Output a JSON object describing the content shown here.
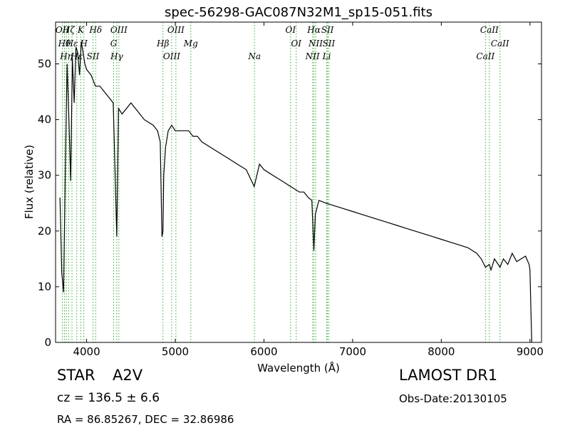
{
  "chart_data": {
    "type": "line",
    "title": "spec-56298-GAC087N32M1_sp15-051.fits",
    "xlabel": "Wavelength (Å)",
    "ylabel": "Flux (relative)",
    "xlim": [
      3650,
      9130
    ],
    "ylim": [
      0,
      57.5
    ],
    "xticks": [
      4000,
      5000,
      6000,
      7000,
      8000,
      9000
    ],
    "yticks": [
      0,
      10,
      20,
      30,
      40,
      50
    ],
    "grid": false,
    "series": [
      {
        "x": [
          3700,
          3720,
          3740,
          3760,
          3780,
          3800,
          3820,
          3840,
          3860,
          3880,
          3900,
          3920,
          3940,
          3960,
          3980,
          4000,
          4050,
          4100,
          4150,
          4200,
          4250,
          4300,
          4340,
          4360,
          4400,
          4450,
          4500,
          4550,
          4600,
          4650,
          4700,
          4750,
          4800,
          4830,
          4850,
          4861,
          4870,
          4890,
          4920,
          4960,
          5000,
          5050,
          5100,
          5150,
          5200,
          5250,
          5300,
          5400,
          5500,
          5600,
          5700,
          5800,
          5890,
          5950,
          6000,
          6100,
          6200,
          6300,
          6400,
          6450,
          6500,
          6540,
          6563,
          6580,
          6620,
          6700,
          6800,
          6900,
          7000,
          7100,
          7200,
          7300,
          7400,
          7500,
          7600,
          7700,
          7800,
          7900,
          8000,
          8100,
          8200,
          8300,
          8400,
          8450,
          8498,
          8542,
          8560,
          8600,
          8662,
          8700,
          8750,
          8800,
          8850,
          8900,
          8950,
          8990,
          9000,
          9010,
          9020
        ],
        "y": [
          26,
          12.5,
          9,
          31,
          50,
          40,
          29,
          51,
          43,
          53,
          52,
          48,
          54,
          52,
          50,
          49,
          48,
          46,
          46,
          45,
          44,
          43,
          19,
          42,
          41,
          42,
          43,
          42,
          41,
          40,
          39.5,
          39,
          38,
          36,
          19,
          20,
          30,
          35,
          38,
          39,
          38,
          38,
          38,
          38,
          37,
          37,
          36,
          35,
          34,
          33,
          32,
          31,
          28,
          32,
          31,
          30,
          29,
          28,
          27,
          27,
          26,
          25.5,
          16.5,
          23,
          25.5,
          25,
          24.5,
          24,
          23.5,
          23,
          22.5,
          22,
          21.5,
          21,
          20.5,
          20,
          19.5,
          19,
          18.5,
          18,
          17.5,
          17,
          16,
          15,
          13.5,
          14,
          13,
          15,
          13.5,
          15,
          14,
          16,
          14.5,
          15,
          15.5,
          14,
          13,
          6,
          0
        ]
      }
    ],
    "lines": [
      {
        "x": 3727,
        "label": "OII"
      },
      {
        "x": 3750,
        "label": "Hθ"
      },
      {
        "x": 3771,
        "label": "Hη"
      },
      {
        "x": 3798,
        "label": "Hζ"
      },
      {
        "x": 3835,
        "label": "Hε"
      },
      {
        "x": 3889,
        "label": "Hε"
      },
      {
        "x": 3934,
        "label": "K"
      },
      {
        "x": 3969,
        "label": "H"
      },
      {
        "x": 4072,
        "label": "SII"
      },
      {
        "x": 4102,
        "label": "Hδ"
      },
      {
        "x": 4305,
        "label": "G"
      },
      {
        "x": 4340,
        "label": "Hγ"
      },
      {
        "x": 4364,
        "label": "OIII"
      },
      {
        "x": 4861,
        "label": "Hβ"
      },
      {
        "x": 4959,
        "label": "OIII"
      },
      {
        "x": 5007,
        "label": "OIII"
      },
      {
        "x": 5175,
        "label": "Mg"
      },
      {
        "x": 5893,
        "label": "Na"
      },
      {
        "x": 6300,
        "label": "OI"
      },
      {
        "x": 6364,
        "label": "OI"
      },
      {
        "x": 6548,
        "label": "NII"
      },
      {
        "x": 6563,
        "label": "Hα"
      },
      {
        "x": 6583,
        "label": "NII"
      },
      {
        "x": 6708,
        "label": "Li"
      },
      {
        "x": 6716,
        "label": "SII"
      },
      {
        "x": 6731,
        "label": "SII"
      },
      {
        "x": 8498,
        "label": "CaII"
      },
      {
        "x": 8542,
        "label": "CaII"
      },
      {
        "x": 8662,
        "label": "CaII"
      }
    ]
  },
  "info": {
    "class": "STAR",
    "subclass": "A2V",
    "cz": "cz = 136.5 ± 6.6",
    "radec": "RA = 86.85267, DEC = 32.86986",
    "survey": "LAMOST DR1",
    "obs_date": "Obs-Date:20130105"
  },
  "colors": {
    "spectrum": "#000000",
    "line_marker": "#33aa33",
    "background": "#ffffff"
  }
}
